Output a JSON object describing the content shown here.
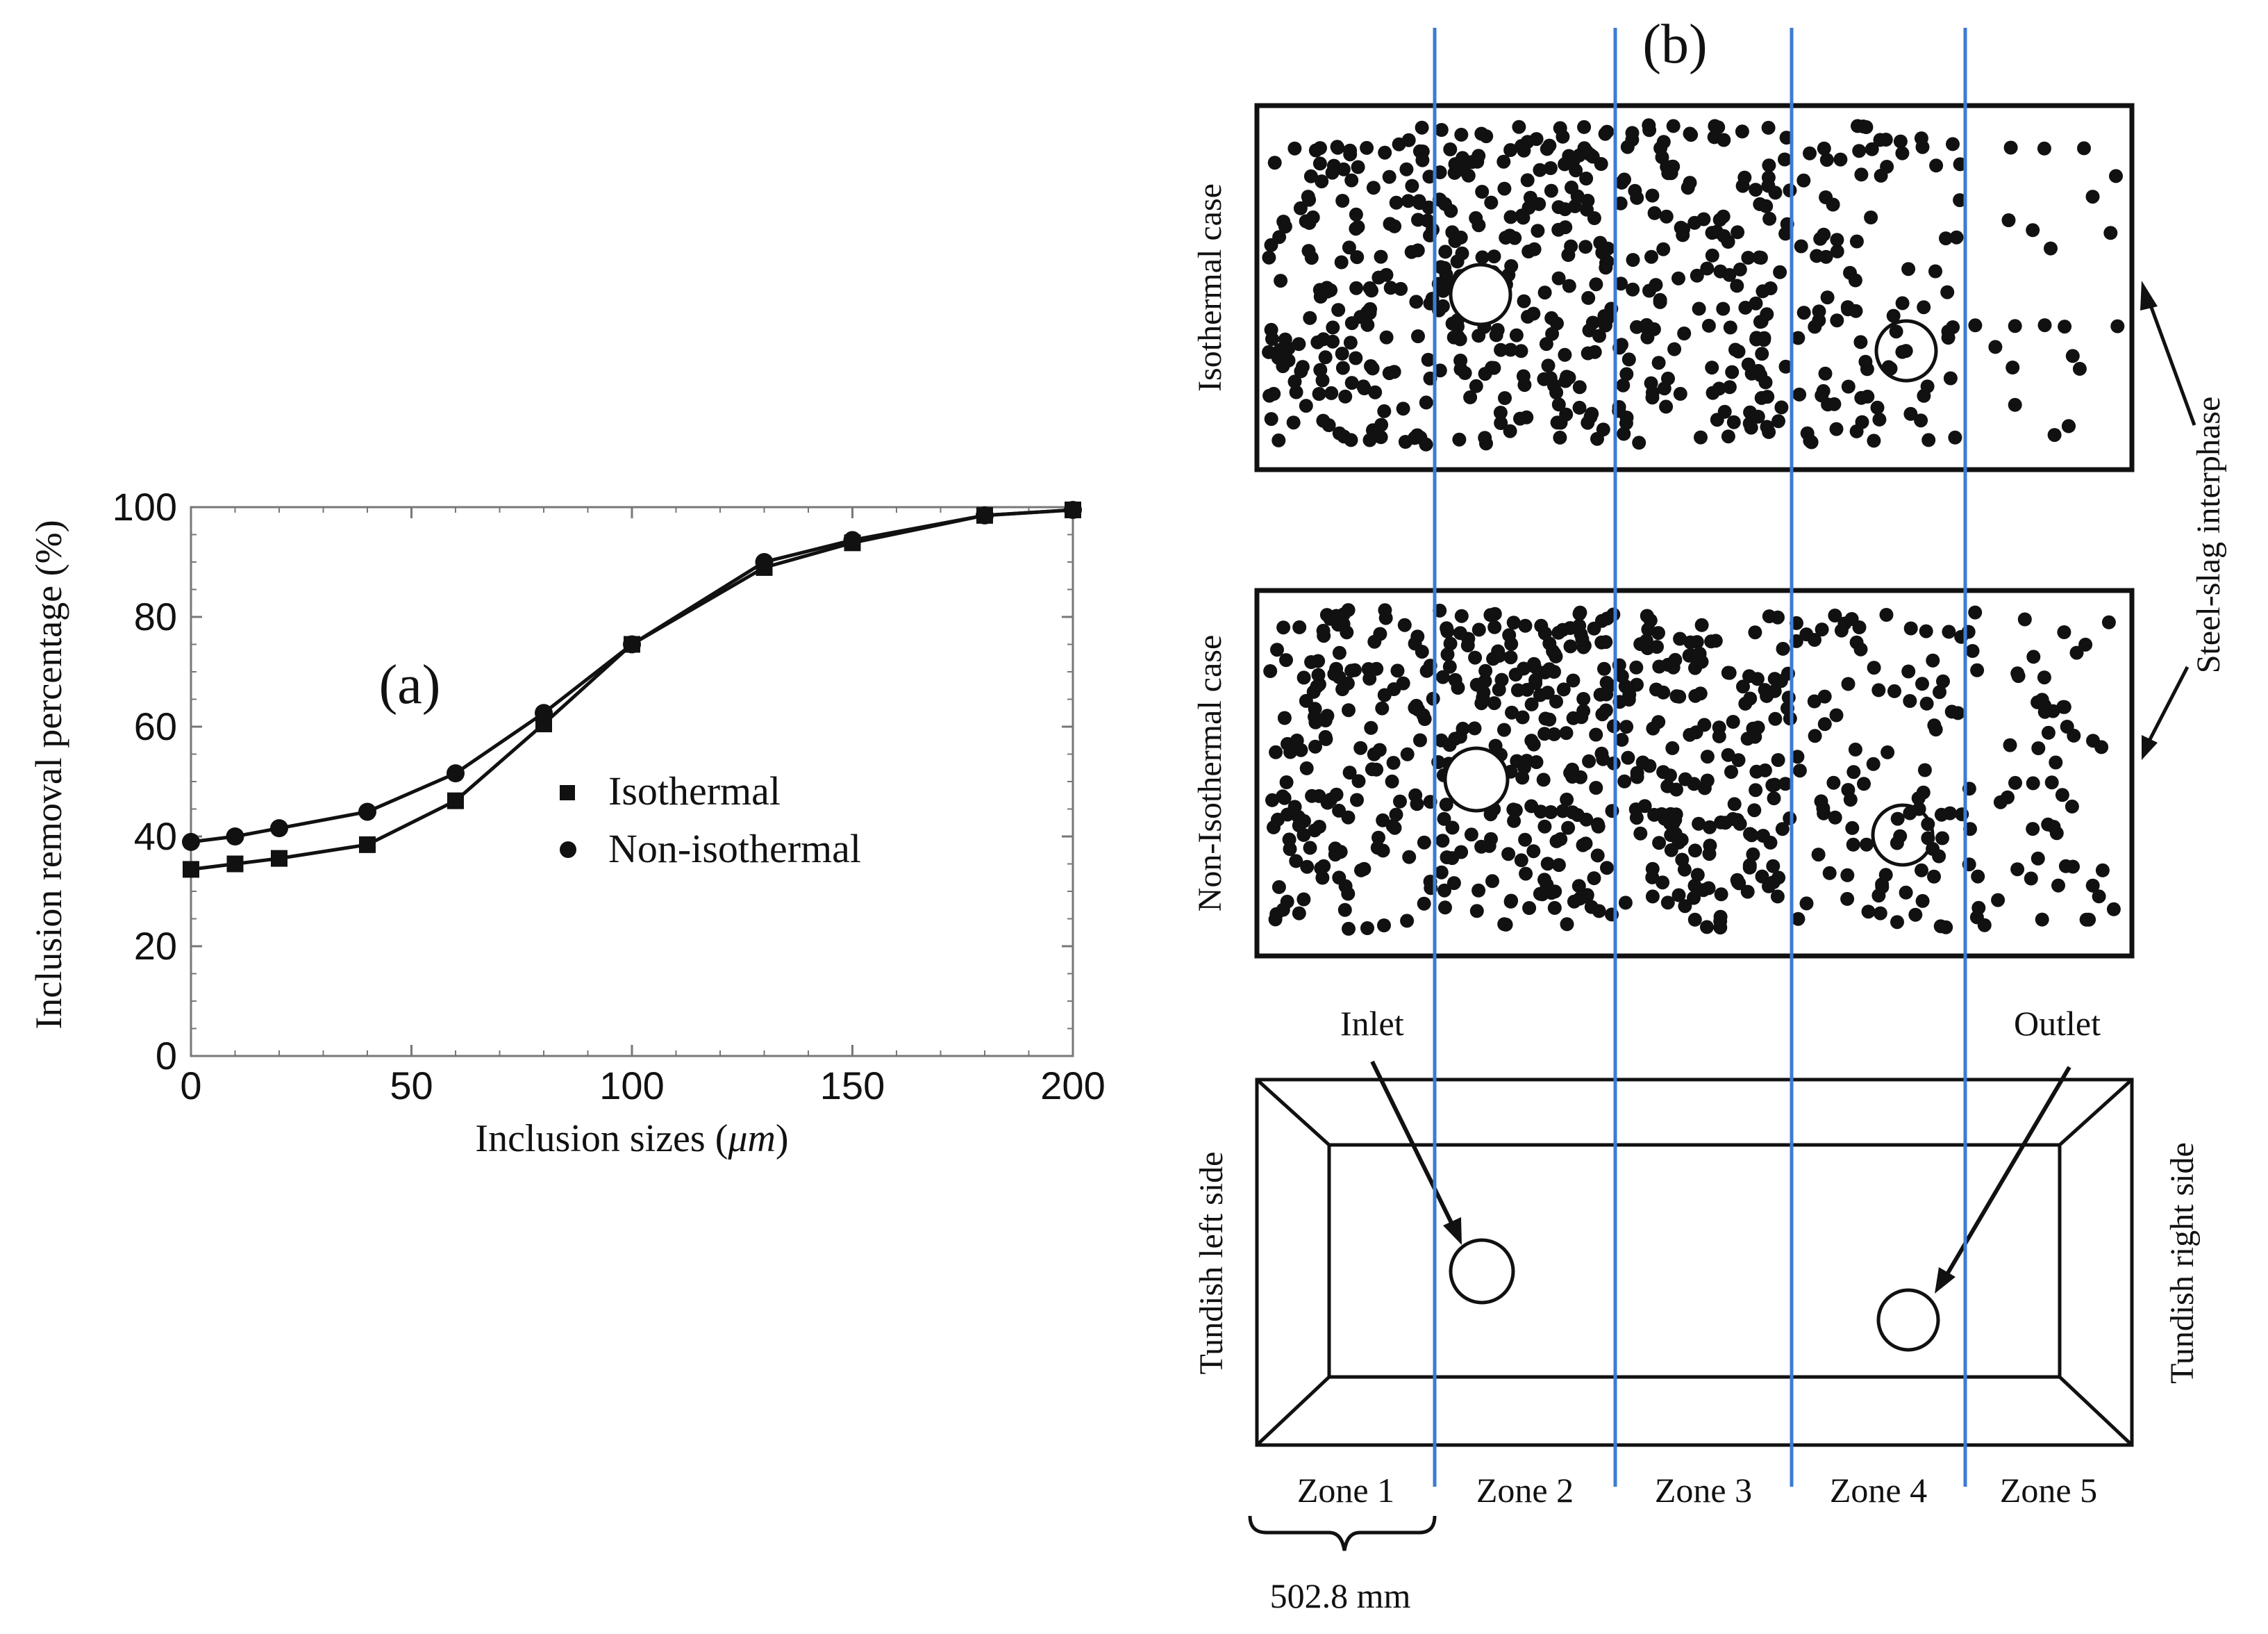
{
  "panel_a": {
    "label": "(a)",
    "legend": {
      "isothermal": "Isothermal",
      "non_isothermal": "Non-isothermal"
    }
  },
  "chart_data": {
    "type": "line",
    "title": "",
    "xlabel": "Inclusion sizes (μm)",
    "xlabel_text": "Inclusion sizes (",
    "xlabel_unit": "μm",
    "xlabel_close": ")",
    "ylabel": "Inclusion removal percentage (%)",
    "xlim": [
      0,
      200
    ],
    "ylim": [
      0,
      100
    ],
    "xticks": [
      0,
      50,
      100,
      150,
      200
    ],
    "yticks": [
      0,
      20,
      40,
      60,
      80,
      100
    ],
    "grid": false,
    "legend_position": "center-right",
    "series": [
      {
        "name": "Isothermal",
        "marker": "square",
        "x": [
          0,
          10,
          20,
          40,
          60,
          80,
          100,
          130,
          150,
          180,
          200
        ],
        "y": [
          34,
          35,
          36,
          38.5,
          46.5,
          60.5,
          75,
          89,
          93.5,
          98.5,
          99.5
        ]
      },
      {
        "name": "Non-isothermal",
        "marker": "circle",
        "x": [
          0,
          10,
          20,
          40,
          60,
          80,
          100,
          130,
          150,
          180,
          200
        ],
        "y": [
          39,
          40,
          41.5,
          44.5,
          51.5,
          62.5,
          75,
          90,
          94,
          98.5,
          99.5
        ]
      }
    ]
  },
  "panel_b": {
    "label": "(b)",
    "isothermal_case": "Isothermal case",
    "non_isothermal_case": "Non-Isothermal case",
    "steel_slag": "Steel-slag interphase",
    "inlet": "Inlet",
    "outlet": "Outlet",
    "tundish_left": "Tundish left side",
    "tundish_right": "Tundish right side",
    "zones": [
      "Zone 1",
      "Zone 2",
      "Zone 3",
      "Zone 4",
      "Zone 5"
    ],
    "scale": "502.8 mm",
    "colors": {
      "zone_line": "#3d7bd4",
      "ink": "#111111"
    }
  }
}
